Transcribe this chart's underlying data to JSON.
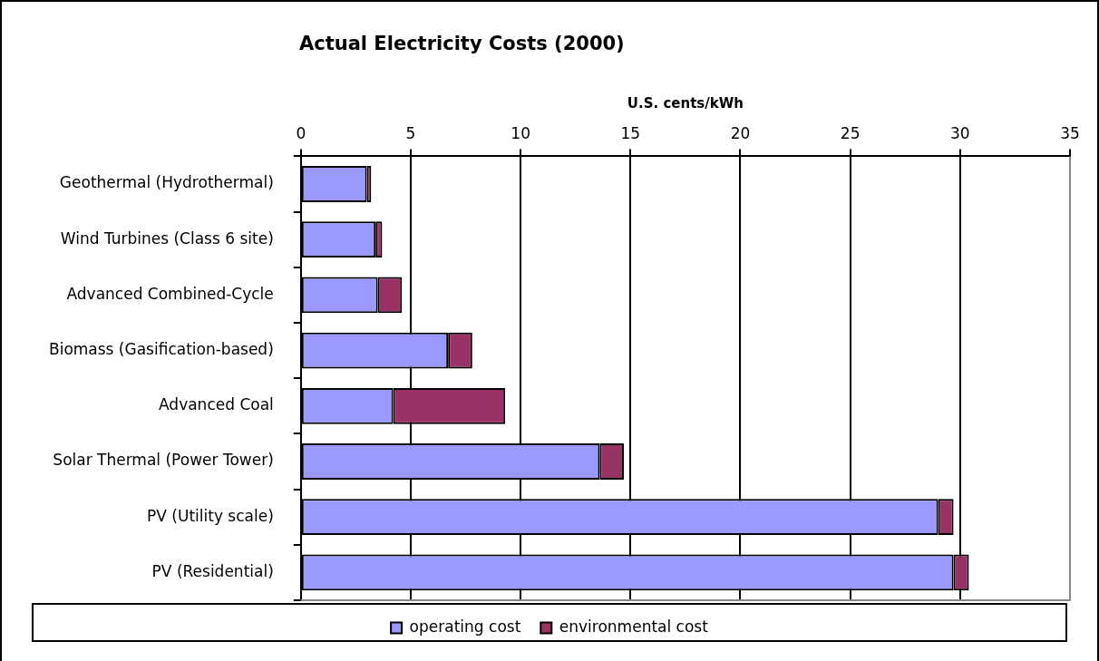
{
  "chart_data": {
    "type": "bar",
    "orientation": "horizontal",
    "stacked": true,
    "title": "Actual Electricity Costs (2000)",
    "xlabel": "U.S. cents/kWh",
    "categories": [
      "Geothermal (Hydrothermal)",
      "Wind Turbines (Class 6 site)",
      "Advanced Combined-Cycle",
      "Biomass (Gasification-based)",
      "Advanced Coal",
      "Solar Thermal (Power Tower)",
      "PV (Utility scale)",
      "PV (Residential)"
    ],
    "series": [
      {
        "name": "operating cost",
        "color": "#9999ff",
        "values": [
          3.0,
          3.4,
          3.5,
          6.7,
          4.2,
          13.6,
          29.0,
          29.7
        ]
      },
      {
        "name": "environmental cost",
        "color": "#993366",
        "values": [
          0.2,
          0.3,
          1.1,
          1.1,
          5.1,
          1.1,
          0.7,
          0.7
        ]
      }
    ],
    "xlim": [
      0,
      35
    ],
    "xticks": [
      0,
      5,
      10,
      15,
      20,
      25,
      30,
      35
    ],
    "grid": "x",
    "legend": "bottom"
  }
}
